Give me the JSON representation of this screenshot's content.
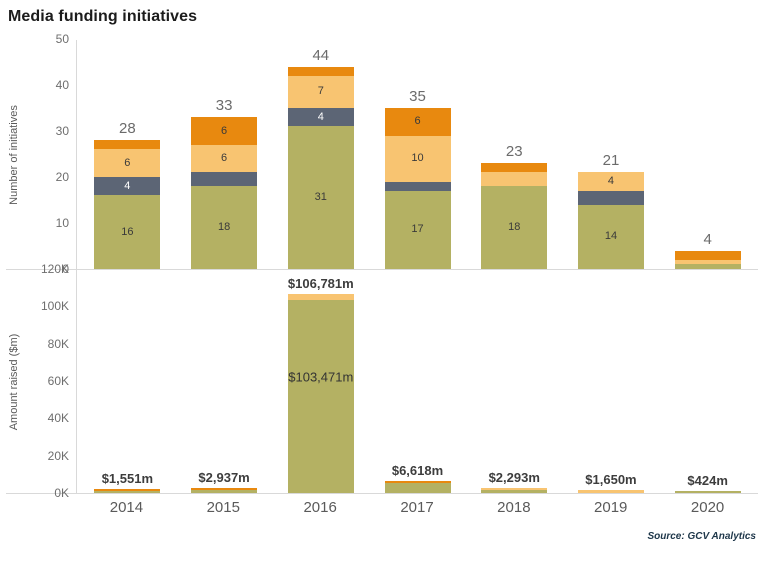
{
  "title": "Media funding initiatives",
  "source": "Source: GCV Analytics",
  "colors": {
    "olive": "#b4b163",
    "slate": "#5c6575",
    "light_orange": "#f8c471",
    "dark_orange": "#e8890f",
    "axis_line": "#d9d9d9",
    "total_label": "#6b6b6b",
    "segment_label_dark": "#3a3a3a",
    "segment_label_light": "#ffffff"
  },
  "x_axis": {
    "categories": [
      "2014",
      "2015",
      "2016",
      "2017",
      "2018",
      "2019",
      "2020"
    ]
  },
  "chart_data": [
    {
      "type": "bar",
      "stacked": true,
      "ylabel": "Number of initiatives",
      "categories": [
        "2014",
        "2015",
        "2016",
        "2017",
        "2018",
        "2019",
        "2020"
      ],
      "series": [
        {
          "name": "segment-olive",
          "color_key": "olive",
          "values": [
            16,
            18,
            31,
            17,
            18,
            14,
            1
          ]
        },
        {
          "name": "segment-slate",
          "color_key": "slate",
          "values": [
            4,
            3,
            4,
            2,
            0,
            3,
            0
          ]
        },
        {
          "name": "segment-light-orange",
          "color_key": "light_orange",
          "values": [
            6,
            6,
            7,
            10,
            3,
            4,
            1
          ]
        },
        {
          "name": "segment-dark-orange",
          "color_key": "dark_orange",
          "values": [
            2,
            6,
            2,
            6,
            2,
            0,
            2
          ]
        }
      ],
      "totals": [
        "28",
        "33",
        "44",
        "35",
        "23",
        "21",
        "4"
      ],
      "ylim": [
        0,
        50
      ],
      "yticks": [
        {
          "label": "0",
          "value": 0
        },
        {
          "label": "10",
          "value": 10
        },
        {
          "label": "20",
          "value": 20
        },
        {
          "label": "30",
          "value": 30
        },
        {
          "label": "40",
          "value": 40
        },
        {
          "label": "50",
          "value": 50
        }
      ],
      "grid": false,
      "legend": false,
      "label_min_value": 4
    },
    {
      "type": "bar",
      "stacked": true,
      "ylabel": "Amount raised ($m)",
      "categories": [
        "2014",
        "2015",
        "2016",
        "2017",
        "2018",
        "2019",
        "2020"
      ],
      "series": [
        {
          "name": "segment-olive",
          "color_key": "olive",
          "values": [
            600,
            1800,
            103471,
            5100,
            1800,
            0,
            424
          ]
        },
        {
          "name": "segment-light-orange",
          "color_key": "light_orange",
          "values": [
            0,
            0,
            3310,
            0,
            493,
            1650,
            0
          ]
        },
        {
          "name": "segment-dark-orange",
          "color_key": "dark_orange",
          "values": [
            951,
            1137,
            0,
            1518,
            0,
            0,
            0
          ]
        }
      ],
      "totals": [
        "$1,551m",
        "$2,937m",
        "$106,781m",
        "$6,618m",
        "$2,293m",
        "$1,650m",
        "$424m"
      ],
      "inner_labels": [
        null,
        null,
        "$103,471m",
        null,
        null,
        null,
        null
      ],
      "ylim": [
        0,
        120000
      ],
      "yticks": [
        {
          "label": "0K",
          "value": 0
        },
        {
          "label": "20K",
          "value": 20000
        },
        {
          "label": "40K",
          "value": 40000
        },
        {
          "label": "60K",
          "value": 60000
        },
        {
          "label": "80K",
          "value": 80000
        },
        {
          "label": "100K",
          "value": 100000
        },
        {
          "label": "120K",
          "value": 120000
        }
      ],
      "grid": false,
      "legend": false
    }
  ]
}
